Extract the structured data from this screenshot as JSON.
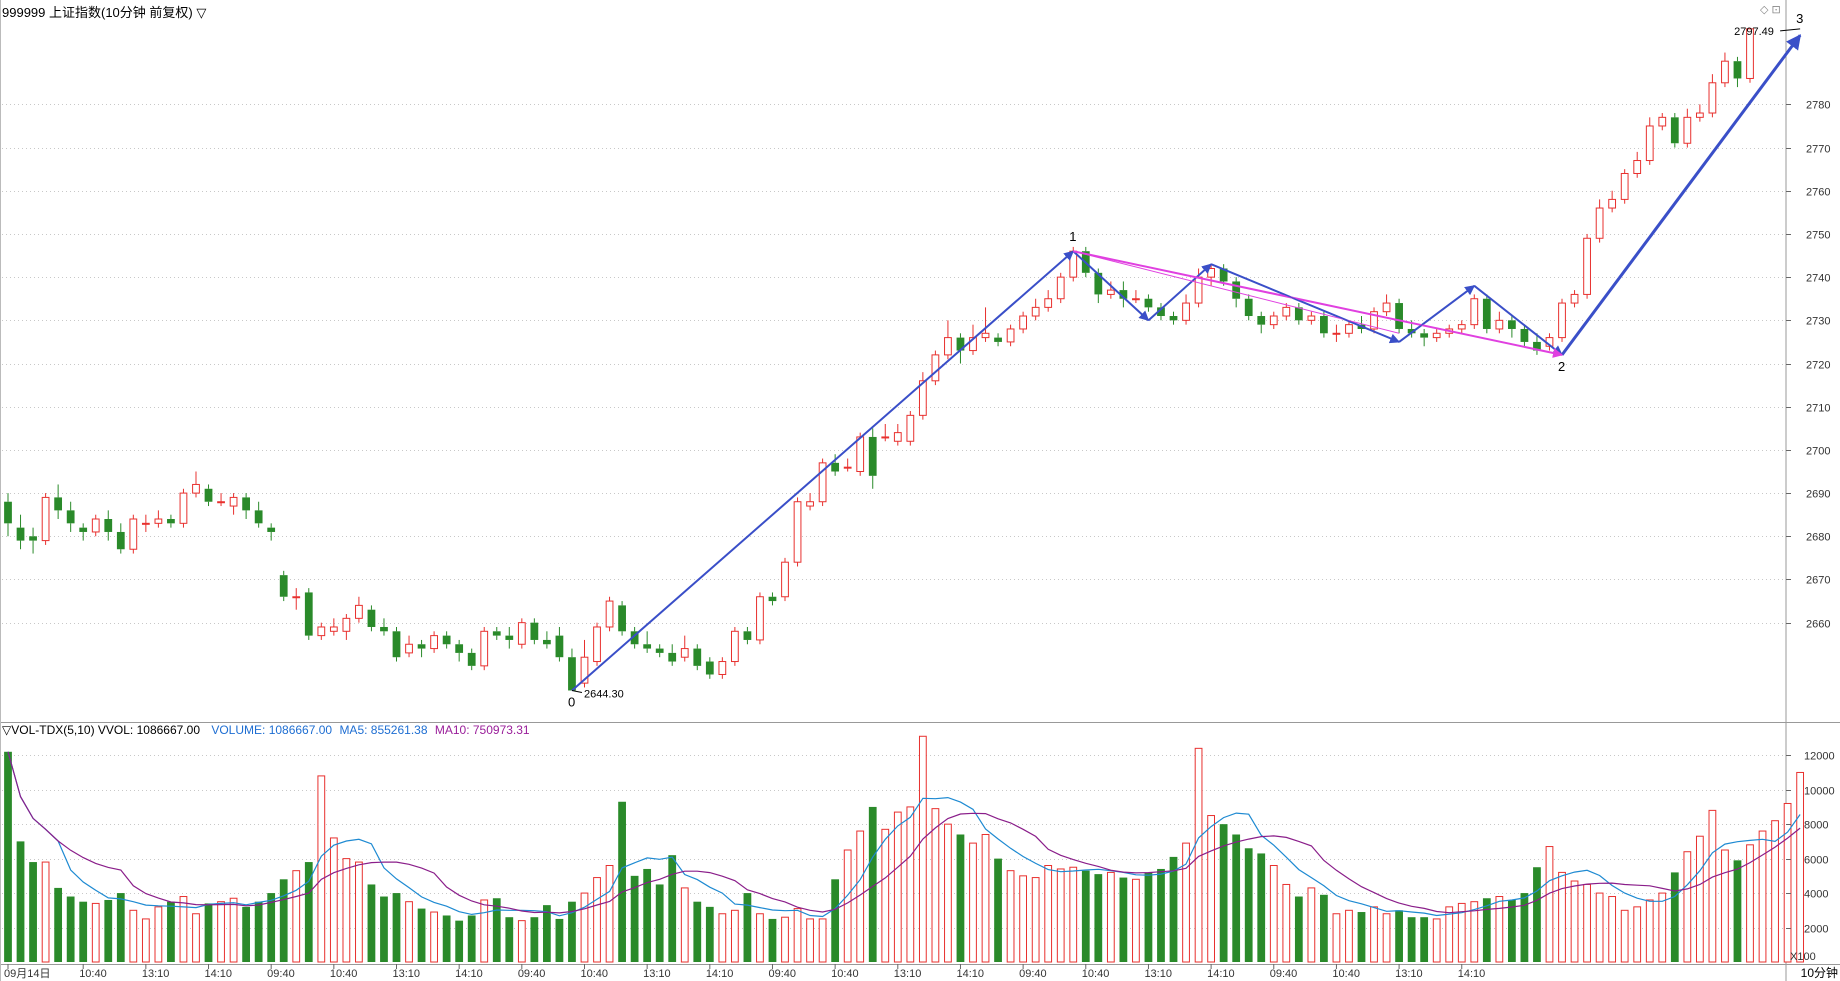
{
  "header": {
    "title": "999999 上证指数(10分钟 前复权) ▽",
    "vol_indicator": "▽VOL-TDX(5,10)  VVOL: 1086667.00",
    "vol_value": "VOLUME: 1086667.00",
    "ma5_value": "MA5: 855261.38",
    "ma10_value": "MA10: 750973.31",
    "x100": "X100",
    "period": "10分钟",
    "corner_icons": "◇ ⊡"
  },
  "colors": {
    "up": "#e8302e",
    "down": "#2a8a2a",
    "trend": "#3a4fc8",
    "magenta": "#e040e0",
    "ma5": "#1e8ad2",
    "ma10": "#8a1e8a",
    "grid": "#c8c8c8"
  },
  "chart_data": [
    {
      "type": "candlestick",
      "ylim": [
        2637,
        2800
      ],
      "yticks": [
        2660,
        2670,
        2680,
        2690,
        2700,
        2710,
        2720,
        2730,
        2740,
        2750,
        2760,
        2770,
        2780
      ],
      "x_labels": [
        {
          "i": 0,
          "label": "09月14日"
        },
        {
          "i": 6,
          "label": "10:40"
        },
        {
          "i": 11,
          "label": "13:10"
        },
        {
          "i": 16,
          "label": "14:10"
        },
        {
          "i": 21,
          "label": "09:40"
        },
        {
          "i": 26,
          "label": "10:40"
        },
        {
          "i": 31,
          "label": "13:10"
        },
        {
          "i": 36,
          "label": "14:10"
        },
        {
          "i": 41,
          "label": "09:40"
        },
        {
          "i": 46,
          "label": "10:40"
        },
        {
          "i": 51,
          "label": "13:10"
        },
        {
          "i": 56,
          "label": "14:10"
        },
        {
          "i": 61,
          "label": "09:40"
        },
        {
          "i": 66,
          "label": "10:40"
        },
        {
          "i": 71,
          "label": "13:10"
        },
        {
          "i": 76,
          "label": "14:10"
        },
        {
          "i": 81,
          "label": "09:40"
        },
        {
          "i": 86,
          "label": "10:40"
        },
        {
          "i": 91,
          "label": "13:10"
        },
        {
          "i": 96,
          "label": "14:10"
        },
        {
          "i": 101,
          "label": "09:40"
        },
        {
          "i": 106,
          "label": "10:40"
        },
        {
          "i": 111,
          "label": "13:10"
        },
        {
          "i": 116,
          "label": "14:10"
        }
      ],
      "candles": [
        [
          2688,
          2683,
          2690,
          2680
        ],
        [
          2682,
          2679,
          2685,
          2677
        ],
        [
          2680,
          2679,
          2682,
          2676
        ],
        [
          2679,
          2689,
          2690,
          2678
        ],
        [
          2689,
          2686,
          2692,
          2684
        ],
        [
          2686,
          2683,
          2688,
          2681
        ],
        [
          2682,
          2681,
          2683,
          2679
        ],
        [
          2681,
          2684,
          2685,
          2680
        ],
        [
          2684,
          2681,
          2686,
          2679
        ],
        [
          2681,
          2677,
          2683,
          2676
        ],
        [
          2677,
          2684,
          2685,
          2676
        ],
        [
          2683,
          2683,
          2685,
          2681
        ],
        [
          2683,
          2684,
          2686,
          2682
        ],
        [
          2684,
          2683,
          2685,
          2682
        ],
        [
          2683,
          2690,
          2691,
          2682
        ],
        [
          2690,
          2692,
          2695,
          2689
        ],
        [
          2691,
          2688,
          2692,
          2687
        ],
        [
          2688,
          2688,
          2690,
          2687
        ],
        [
          2687,
          2689,
          2690,
          2685
        ],
        [
          2689,
          2686,
          2690,
          2684
        ],
        [
          2686,
          2683,
          2688,
          2682
        ],
        [
          2682,
          2681,
          2683,
          2679
        ],
        [
          2671,
          2666,
          2672,
          2665
        ],
        [
          2666,
          2666,
          2668,
          2663
        ],
        [
          2667,
          2657,
          2668,
          2656
        ],
        [
          2657,
          2659,
          2660,
          2656
        ],
        [
          2658,
          2659,
          2661,
          2657
        ],
        [
          2658,
          2661,
          2662,
          2656
        ],
        [
          2661,
          2664,
          2666,
          2660
        ],
        [
          2663,
          2659,
          2664,
          2658
        ],
        [
          2659,
          2658,
          2661,
          2657
        ],
        [
          2658,
          2652,
          2659,
          2651
        ],
        [
          2653,
          2655,
          2657,
          2652
        ],
        [
          2655,
          2654,
          2656,
          2652
        ],
        [
          2654,
          2657,
          2658,
          2653
        ],
        [
          2657,
          2655,
          2658,
          2654
        ],
        [
          2655,
          2653,
          2656,
          2651
        ],
        [
          2653,
          2650,
          2654,
          2649
        ],
        [
          2650,
          2658,
          2659,
          2649
        ],
        [
          2658,
          2657,
          2659,
          2656
        ],
        [
          2657,
          2656,
          2659,
          2654
        ],
        [
          2655,
          2660,
          2661,
          2654
        ],
        [
          2660,
          2656,
          2661,
          2655
        ],
        [
          2656,
          2655,
          2658,
          2654
        ],
        [
          2657,
          2652,
          2659,
          2651
        ],
        [
          2652,
          2644.3,
          2654,
          2644.3
        ],
        [
          2646,
          2652,
          2656,
          2645
        ],
        [
          2651,
          2659,
          2660,
          2650
        ],
        [
          2659,
          2665,
          2666,
          2658
        ],
        [
          2664,
          2658,
          2665,
          2657
        ],
        [
          2658,
          2655,
          2659,
          2654
        ],
        [
          2655,
          2654,
          2658,
          2653
        ],
        [
          2654,
          2653,
          2655,
          2652
        ],
        [
          2653,
          2651,
          2655,
          2650
        ],
        [
          2652,
          2654,
          2657,
          2651
        ],
        [
          2654,
          2650,
          2655,
          2649
        ],
        [
          2651,
          2648,
          2652,
          2647
        ],
        [
          2648,
          2651,
          2652,
          2647
        ],
        [
          2651,
          2658,
          2659,
          2650
        ],
        [
          2658,
          2656,
          2659,
          2655
        ],
        [
          2656,
          2666,
          2667,
          2655
        ],
        [
          2666,
          2665,
          2667,
          2664
        ],
        [
          2666,
          2674,
          2675,
          2665
        ],
        [
          2674,
          2688,
          2689,
          2673
        ],
        [
          2687,
          2688,
          2690,
          2686
        ],
        [
          2688,
          2697,
          2698,
          2687
        ],
        [
          2697,
          2695,
          2699,
          2694
        ],
        [
          2696,
          2696,
          2698,
          2695
        ],
        [
          2695,
          2703,
          2704,
          2694
        ],
        [
          2703,
          2694,
          2705,
          2691
        ],
        [
          2703,
          2703,
          2706,
          2702
        ],
        [
          2702,
          2704,
          2706,
          2701
        ],
        [
          2702,
          2708,
          2709,
          2701
        ],
        [
          2708,
          2716,
          2718,
          2707
        ],
        [
          2716,
          2722,
          2723,
          2715
        ],
        [
          2722,
          2726,
          2730,
          2721
        ],
        [
          2726,
          2723,
          2727,
          2720
        ],
        [
          2723,
          2726,
          2729,
          2722
        ],
        [
          2726,
          2727,
          2733,
          2725
        ],
        [
          2726,
          2725,
          2727,
          2724
        ],
        [
          2725,
          2728,
          2729,
          2724
        ],
        [
          2728,
          2731,
          2732,
          2727
        ],
        [
          2731,
          2733,
          2735,
          2730
        ],
        [
          2733,
          2735,
          2737,
          2732
        ],
        [
          2735,
          2740,
          2741,
          2734
        ],
        [
          2740,
          2746,
          2747,
          2739
        ],
        [
          2746,
          2741,
          2747,
          2740
        ],
        [
          2741,
          2736,
          2742,
          2734
        ],
        [
          2736,
          2737,
          2739,
          2735
        ],
        [
          2737,
          2735,
          2739,
          2733
        ],
        [
          2735,
          2735,
          2737,
          2734
        ],
        [
          2735,
          2733,
          2736,
          2732
        ],
        [
          2733,
          2731,
          2734,
          2730
        ],
        [
          2731,
          2730,
          2732,
          2729
        ],
        [
          2730,
          2734,
          2736,
          2729
        ],
        [
          2734,
          2740,
          2742,
          2733
        ],
        [
          2740,
          2742,
          2743,
          2738
        ],
        [
          2742,
          2739,
          2743,
          2738
        ],
        [
          2739,
          2735,
          2740,
          2733
        ],
        [
          2735,
          2731,
          2736,
          2730
        ],
        [
          2731,
          2729,
          2732,
          2727
        ],
        [
          2729,
          2731,
          2732,
          2728
        ],
        [
          2731,
          2733,
          2734,
          2730
        ],
        [
          2733,
          2730,
          2734,
          2729
        ],
        [
          2730,
          2731,
          2732,
          2729
        ],
        [
          2731,
          2727,
          2732,
          2726
        ],
        [
          2727,
          2727,
          2729,
          2725
        ],
        [
          2727,
          2729,
          2730,
          2726
        ],
        [
          2729,
          2728,
          2731,
          2727
        ],
        [
          2728,
          2732,
          2733,
          2727
        ],
        [
          2732,
          2734,
          2736,
          2731
        ],
        [
          2734,
          2728,
          2735,
          2727
        ],
        [
          2728,
          2727,
          2730,
          2726
        ],
        [
          2727,
          2726,
          2728,
          2724
        ],
        [
          2726,
          2727,
          2728,
          2725
        ],
        [
          2727,
          2728,
          2729,
          2726
        ],
        [
          2728,
          2729,
          2730,
          2727
        ],
        [
          2729,
          2735,
          2736,
          2728
        ],
        [
          2735,
          2728,
          2736,
          2727
        ],
        [
          2728,
          2730,
          2732,
          2727
        ],
        [
          2730,
          2728,
          2731,
          2726
        ],
        [
          2728,
          2725,
          2729,
          2724
        ],
        [
          2725,
          2723,
          2727,
          2722
        ],
        [
          2724,
          2726,
          2727,
          2723
        ],
        [
          2726,
          2734,
          2735,
          2725
        ],
        [
          2734,
          2736,
          2737,
          2733
        ],
        [
          2736,
          2749,
          2750,
          2735
        ],
        [
          2749,
          2756,
          2758,
          2748
        ],
        [
          2756,
          2758,
          2760,
          2755
        ],
        [
          2758,
          2764,
          2765,
          2757
        ],
        [
          2764,
          2767,
          2769,
          2763
        ],
        [
          2767,
          2775,
          2777,
          2766
        ],
        [
          2775,
          2777,
          2778,
          2774
        ],
        [
          2777,
          2771,
          2778,
          2770
        ],
        [
          2771,
          2777,
          2779,
          2770
        ],
        [
          2777,
          2778,
          2780,
          2776
        ],
        [
          2778,
          2785,
          2787,
          2777
        ],
        [
          2785,
          2790,
          2792,
          2784
        ],
        [
          2790,
          2786,
          2791,
          2784
        ],
        [
          2786,
          2797.49,
          2797.49,
          2785
        ]
      ],
      "annotations": [
        {
          "label": "0",
          "i": 45,
          "price": 2644.3,
          "pos": "below"
        },
        {
          "label": "1",
          "i": 85,
          "price": 2747,
          "pos": "above"
        },
        {
          "label": "2",
          "i": 124,
          "price": 2722,
          "pos": "below"
        },
        {
          "label": "3",
          "i": 143,
          "price": 2797.49,
          "pos": "above"
        }
      ],
      "price_labels": [
        {
          "text": "2644.30",
          "i": 45,
          "price": 2644.3,
          "side": "right"
        },
        {
          "text": "2797.49",
          "i": 143,
          "price": 2797.49,
          "side": "left"
        }
      ],
      "trend_lines": [
        {
          "from": [
            45,
            2644.3
          ],
          "to": [
            85,
            2746
          ],
          "color": "trend",
          "arrow": true,
          "width": 2
        },
        {
          "from": [
            85,
            2746
          ],
          "to": [
            91,
            2730
          ],
          "color": "trend",
          "arrow": true,
          "width": 2
        },
        {
          "from": [
            91,
            2730
          ],
          "to": [
            96,
            2743
          ],
          "color": "trend",
          "arrow": true,
          "width": 2
        },
        {
          "from": [
            96,
            2743
          ],
          "to": [
            111,
            2725
          ],
          "color": "trend",
          "arrow": true,
          "width": 2
        },
        {
          "from": [
            111,
            2725
          ],
          "to": [
            117,
            2738
          ],
          "color": "trend",
          "arrow": true,
          "width": 2
        },
        {
          "from": [
            117,
            2738
          ],
          "to": [
            124,
            2722
          ],
          "color": "trend",
          "arrow": true,
          "width": 2
        },
        {
          "from": [
            124,
            2722
          ],
          "to": [
            143,
            2796
          ],
          "color": "trend",
          "arrow": true,
          "width": 3
        },
        {
          "from": [
            85,
            2746
          ],
          "to": [
            124,
            2722
          ],
          "color": "magenta",
          "arrow": true,
          "width": 2
        },
        {
          "from": [
            45,
            2644.3
          ],
          "to": [
            85,
            2746
          ],
          "color": "trend",
          "arrow": false,
          "width": 1
        }
      ]
    },
    {
      "type": "bar",
      "name": "VOL-TDX(5,10)",
      "ylim": [
        0,
        13000
      ],
      "yticks": [
        2000,
        4000,
        6000,
        8000,
        10000,
        12000
      ],
      "volumes": [
        12200,
        7000,
        5800,
        5800,
        4300,
        3800,
        3500,
        3400,
        3600,
        4000,
        3000,
        2500,
        3200,
        3500,
        3800,
        2800,
        3400,
        3500,
        3700,
        3200,
        3500,
        4000,
        4800,
        5300,
        5800,
        10800,
        7200,
        6000,
        5800,
        4500,
        3800,
        4000,
        3500,
        3100,
        2900,
        2700,
        2400,
        2700,
        3600,
        3700,
        2600,
        2400,
        2600,
        3300,
        2500,
        3500,
        4000,
        4900,
        5600,
        9300,
        5000,
        5400,
        4500,
        6200,
        4300,
        3500,
        3200,
        2800,
        3000,
        4000,
        2800,
        2500,
        2600,
        3100,
        2500,
        2500,
        4800,
        6500,
        7600,
        9000,
        7700,
        8700,
        9000,
        13100,
        8900,
        8000,
        7400,
        6900,
        7400,
        6000,
        5300,
        5000,
        4900,
        5600,
        5400,
        5500,
        5300,
        5100,
        5200,
        4900,
        4800,
        5200,
        5400,
        6100,
        6900,
        12400,
        8500,
        8000,
        7400,
        6600,
        6300,
        5600,
        4500,
        3800,
        4300,
        3900,
        2800,
        3000,
        2900,
        3200,
        2800,
        3000,
        2600,
        2600,
        2500,
        3200,
        3400,
        3500,
        3700,
        3800,
        3600,
        4000,
        5500,
        6700,
        5200,
        4700,
        4500,
        4000,
        3800,
        3000,
        3200,
        3600,
        4000,
        5200,
        6400,
        7300,
        8800,
        6500,
        5900,
        6800,
        7600,
        8200,
        9200,
        11000
      ]
    }
  ]
}
